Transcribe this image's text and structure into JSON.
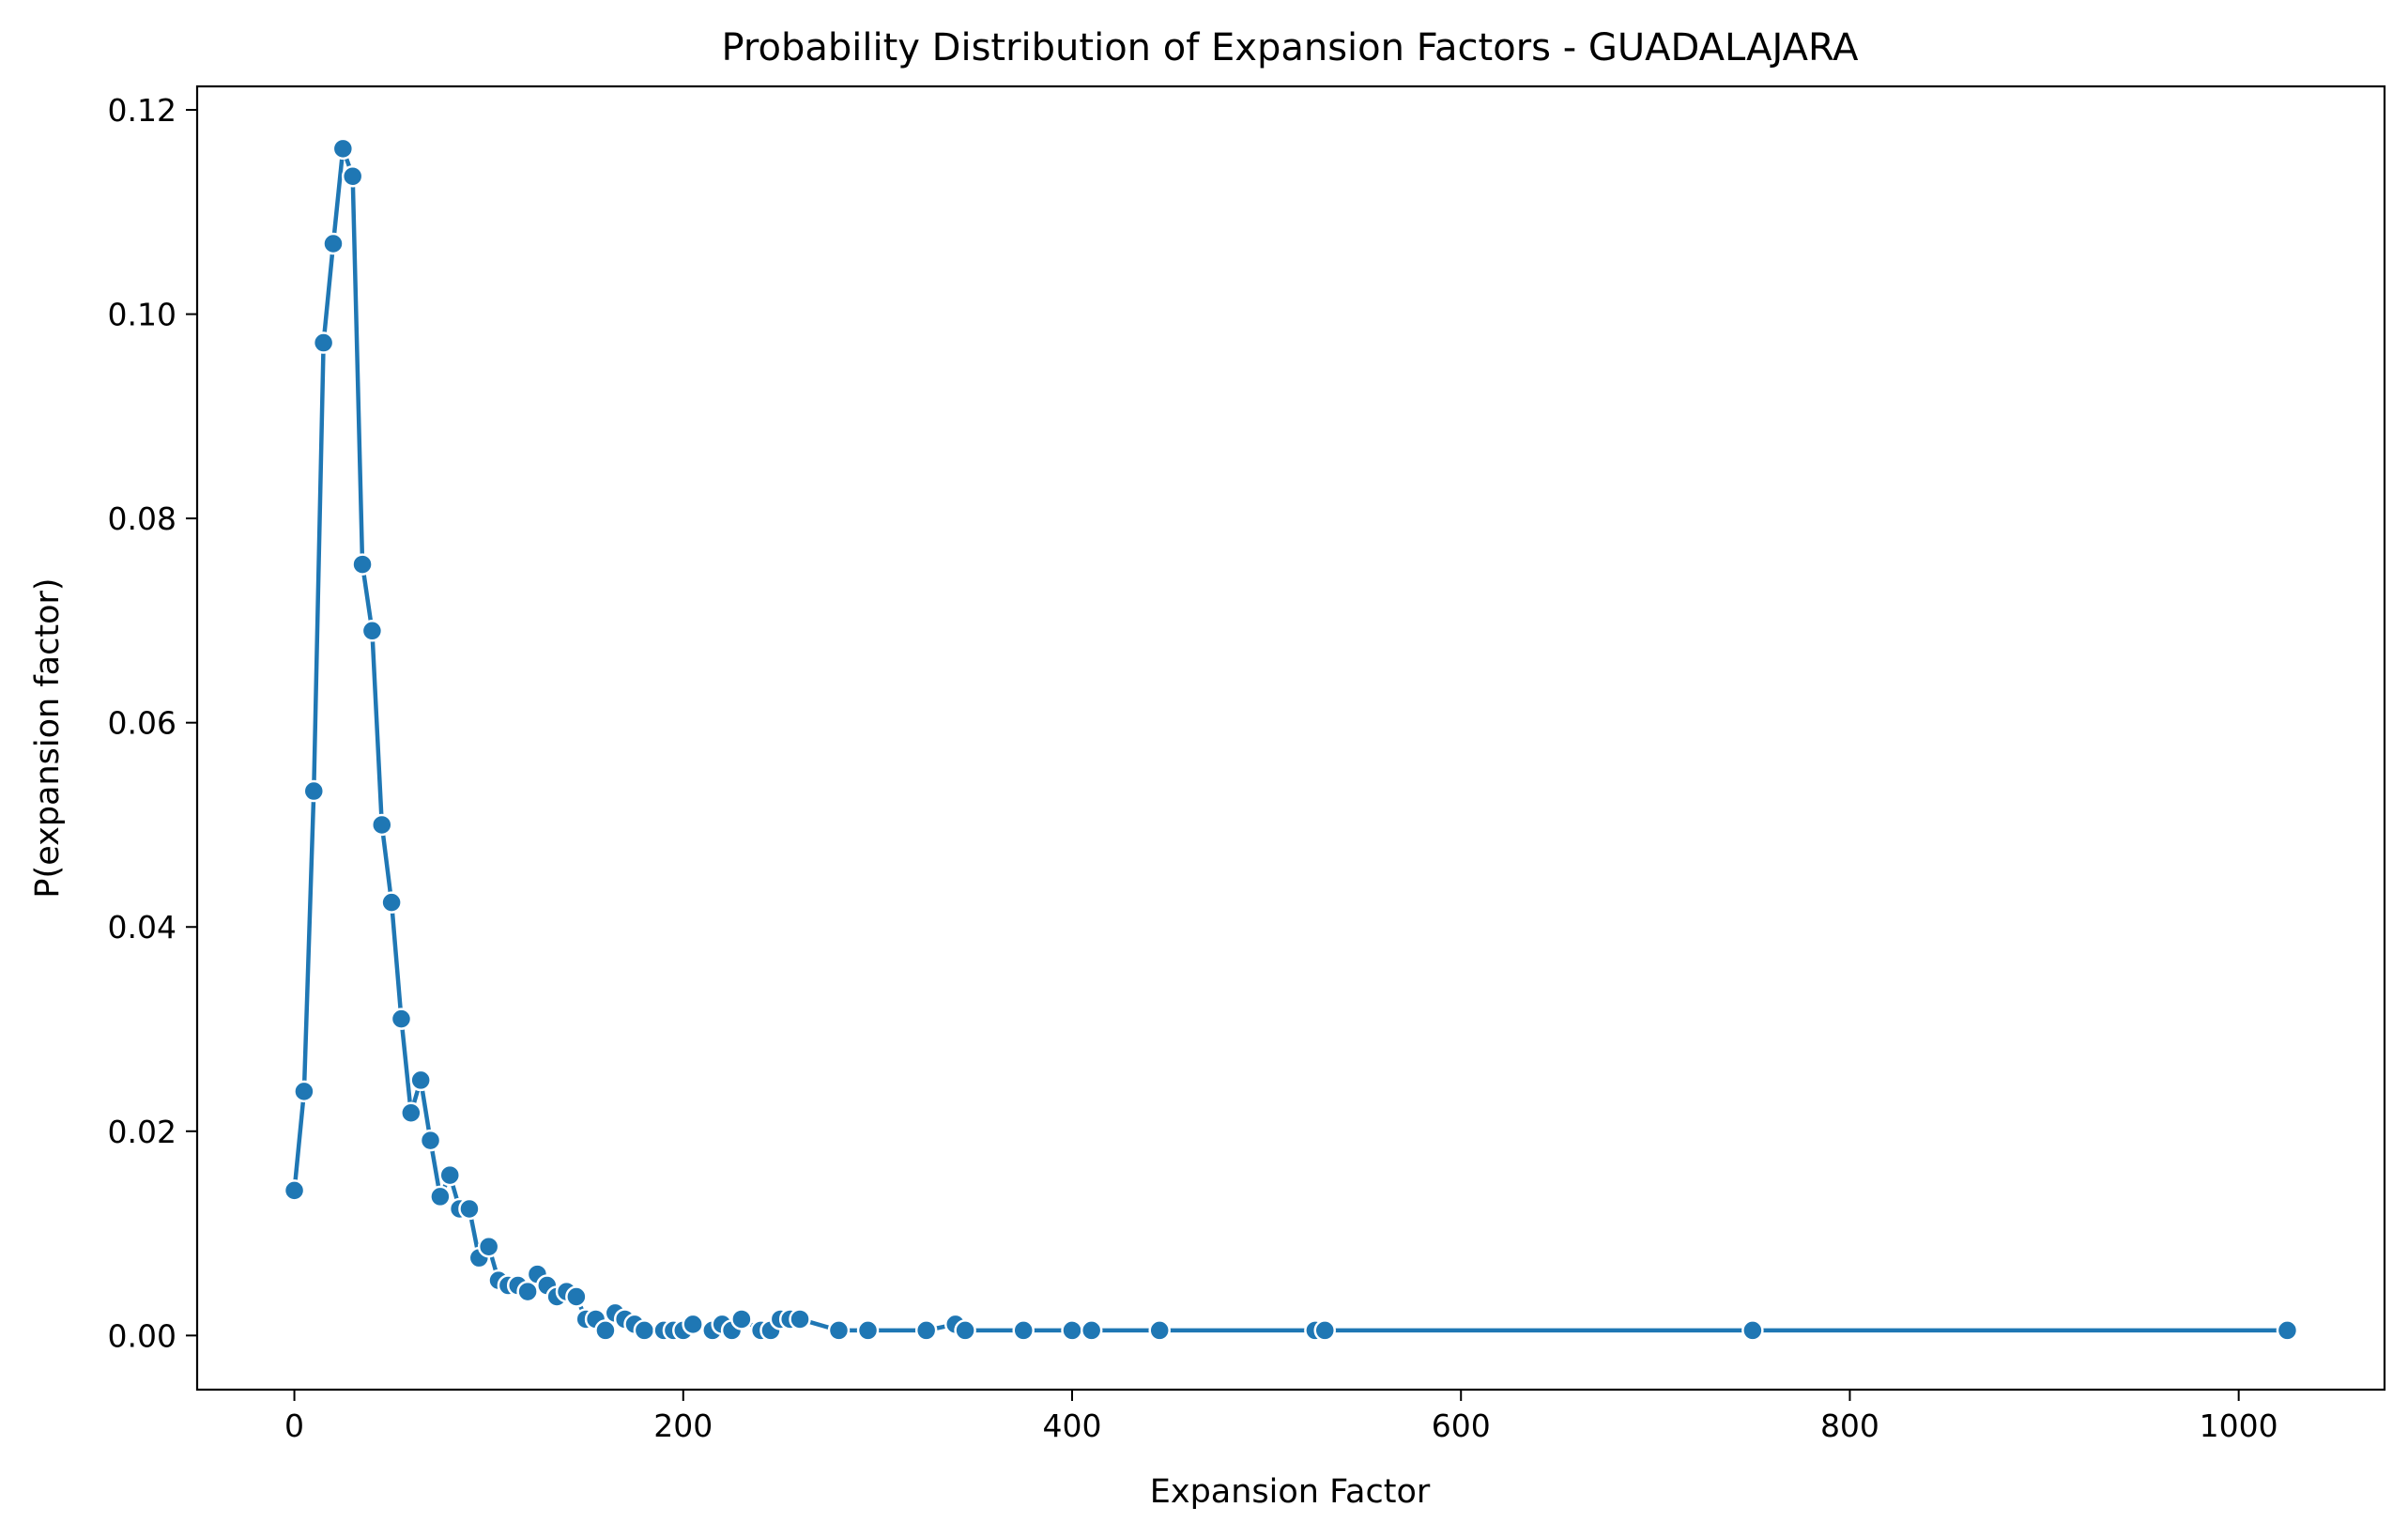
{
  "chart_data": {
    "type": "line",
    "title": "Probability Distribution of Expansion Factors - GUADALAJARA",
    "xlabel": "Expansion Factor",
    "ylabel": "P(expansion factor)",
    "xlim": [
      -50,
      1075
    ],
    "ylim": [
      -0.0053,
      0.1223
    ],
    "xticks": [
      0,
      200,
      400,
      600,
      800,
      1000
    ],
    "xtick_labels": [
      "0",
      "200",
      "400",
      "600",
      "800",
      "1000"
    ],
    "yticks": [
      0.0,
      0.02,
      0.04,
      0.06,
      0.08,
      0.1,
      0.12
    ],
    "ytick_labels": [
      "0.00",
      "0.02",
      "0.04",
      "0.06",
      "0.08",
      "0.10",
      "0.12"
    ],
    "grid": false,
    "marker": "circle",
    "color": "#1f77b4",
    "series": [
      {
        "x": [
          0,
          5,
          10,
          15,
          20,
          25,
          30,
          35,
          40,
          45,
          50,
          55,
          60,
          65,
          70,
          75,
          80,
          85,
          90,
          95,
          100,
          105,
          110,
          115,
          120,
          125,
          130,
          135,
          140,
          145,
          150,
          155,
          160,
          165,
          170,
          175,
          180,
          190,
          195,
          200,
          205,
          215,
          220,
          225,
          230,
          240,
          245,
          250,
          255,
          260,
          280,
          295,
          325,
          340,
          345,
          375,
          400,
          410,
          445,
          525,
          530,
          750,
          1025
        ],
        "y": [
          0.0142,
          0.0239,
          0.0533,
          0.0972,
          0.1069,
          0.1162,
          0.1135,
          0.0755,
          0.069,
          0.05,
          0.0424,
          0.031,
          0.0218,
          0.025,
          0.0191,
          0.0136,
          0.0157,
          0.0124,
          0.0124,
          0.0076,
          0.0087,
          0.0054,
          0.0049,
          0.0049,
          0.0043,
          0.006,
          0.0049,
          0.0038,
          0.0043,
          0.0038,
          0.0016,
          0.0016,
          0.0005,
          0.0022,
          0.0016,
          0.0011,
          0.0005,
          0.0005,
          0.0005,
          0.0005,
          0.0011,
          0.0005,
          0.0011,
          0.0005,
          0.0016,
          0.0005,
          0.0005,
          0.0016,
          0.0016,
          0.0016,
          0.0005,
          0.0005,
          0.0005,
          0.0011,
          0.0005,
          0.0005,
          0.0005,
          0.0005,
          0.0005,
          0.0005,
          0.0005,
          0.0005,
          0.0005
        ]
      }
    ]
  }
}
